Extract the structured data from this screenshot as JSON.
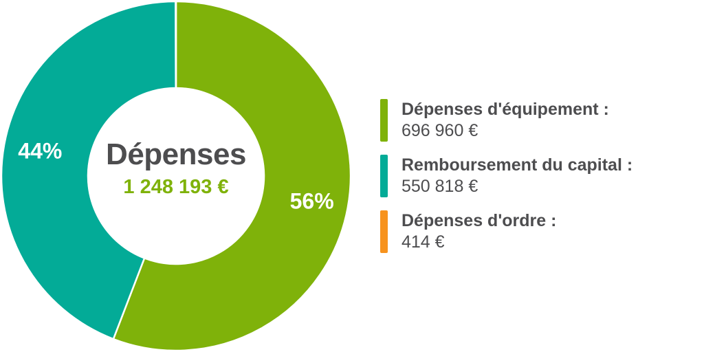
{
  "colors": {
    "equipement": "#7fb20a",
    "remboursement": "#03ab97",
    "ordre": "#f7931e",
    "text": "#4d4d4f"
  },
  "center": {
    "title": "Dépenses",
    "total": "1 248 193 €"
  },
  "legend": [
    {
      "label": "Dépenses d'équipement :",
      "value": "696 960 €"
    },
    {
      "label": "Remboursement du capital :",
      "value": "550 818 €"
    },
    {
      "label": "Dépenses d'ordre :",
      "value": "414 €"
    }
  ],
  "chart_data": {
    "type": "pie",
    "donut": true,
    "title": "Dépenses",
    "total_label": "1 248 193 €",
    "slices": [
      {
        "name": "Dépenses d'équipement",
        "value": 696960,
        "percent_label": "56%",
        "color": "#7fb20a"
      },
      {
        "name": "Remboursement du capital",
        "value": 550818,
        "percent_label": "44%",
        "color": "#03ab97"
      },
      {
        "name": "Dépenses d'ordre",
        "value": 414,
        "percent_label": "",
        "color": "#f7931e"
      }
    ],
    "legend_position": "right"
  }
}
